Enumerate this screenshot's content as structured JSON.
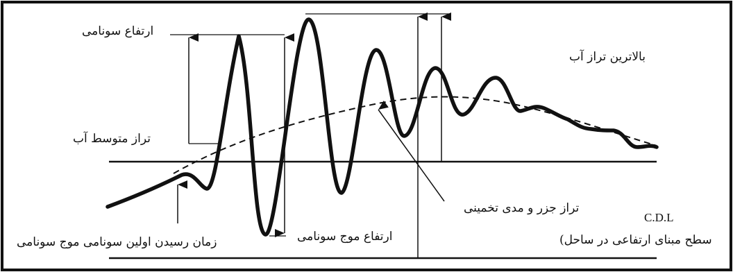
{
  "labels": {
    "tsunami_height_top": "ارتفاع سونامی",
    "highest_water_level": "بالاترین تراز آب",
    "mean_water_level": "تراز متوسط آب",
    "estimated_tide_level": "تراز جزر و مدی تخمینی",
    "cdl": "C.D.L",
    "cdl_description": "سطح مبنای ارتفاعی در ساحل)",
    "first_arrival_time": "زمان رسیدن اولین سونامی موج سونامی",
    "tsunami_wave_height": "ارتفاع موج سونامی"
  },
  "colors": {
    "stroke": "#111111",
    "background": "#ffffff"
  }
}
